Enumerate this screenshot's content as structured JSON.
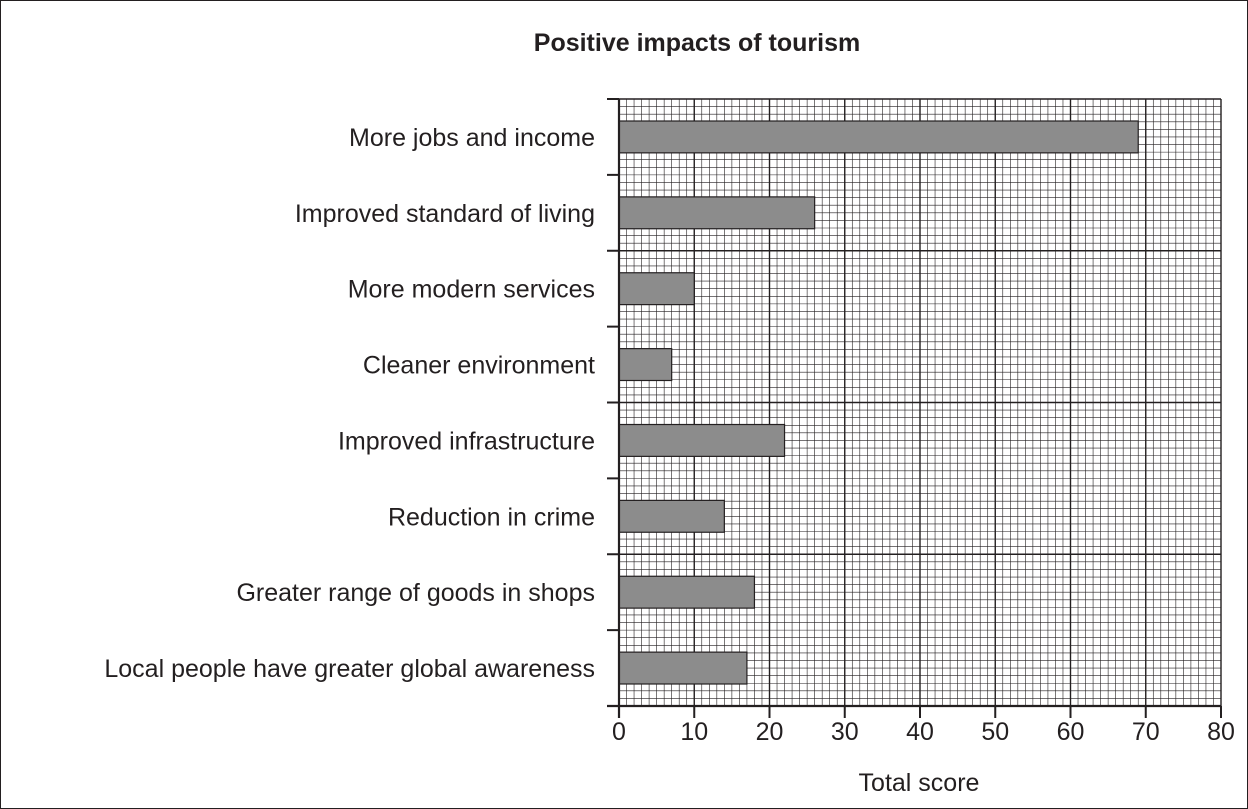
{
  "chart_data": {
    "type": "bar",
    "orientation": "horizontal",
    "title": "Positive impacts of tourism",
    "xlabel": "Total score",
    "ylabel": "",
    "categories": [
      "More jobs and income",
      "Improved standard of living",
      "More modern services",
      "Cleaner environment",
      "Improved infrastructure",
      "Reduction in crime",
      "Greater range of goods in shops",
      "Local people have greater global awareness"
    ],
    "values": [
      69,
      26,
      10,
      7,
      22,
      14,
      18,
      17
    ],
    "xlim": [
      0,
      80
    ],
    "x_ticks": [
      0,
      10,
      20,
      30,
      40,
      50,
      60,
      70,
      80
    ],
    "x_tick_labels": [
      "0",
      "10",
      "20",
      "30",
      "40",
      "50",
      "60",
      "70",
      "80"
    ],
    "grid": true,
    "legend": "none",
    "colors": {
      "bar_fill": "#8c8c8c",
      "bar_stroke": "#231f20",
      "grid": "#231f20",
      "text": "#231f20"
    }
  }
}
